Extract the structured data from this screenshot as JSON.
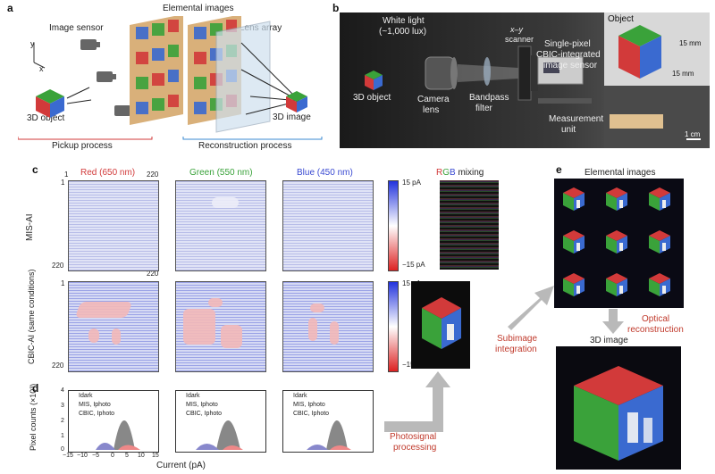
{
  "panels": {
    "a": {
      "label": "a",
      "elemental_images": "Elemental images",
      "image_sensor": "Image sensor",
      "lens_array": "Lens array",
      "object_3d": "3D object",
      "image_3d": "3D image",
      "pickup": "Pickup process",
      "reconstruction": "Reconstruction process",
      "axis_y": "y",
      "axis_x": "x"
    },
    "b": {
      "label": "b",
      "white_light": "White light",
      "white_light_lux": "(~1,000 lux)",
      "object_3d": "3D object",
      "camera_lens_1": "Camera",
      "camera_lens_2": "lens",
      "bandpass_1": "Bandpass",
      "bandpass_2": "filter",
      "scanner_1": "x–y",
      "scanner_2": "scanner",
      "sensor_1": "Single-pixel",
      "sensor_2": "CBIC-integrated",
      "sensor_3": "image sensor",
      "measurement_1": "Measurement",
      "measurement_2": "unit",
      "object_tag": "Object",
      "dim_1": "15 mm",
      "dim_2": "15 mm",
      "scale": "1 cm"
    },
    "c": {
      "label": "c",
      "red": "Red (650 nm)",
      "green": "Green (550 nm)",
      "blue": "Blue (450 nm)",
      "rgb_r": "R",
      "rgb_g": "G",
      "rgb_b": "B",
      "rgb_rest": " mixing",
      "row1": "MIS-AI",
      "row2": "CBIC-AI (same conditions)",
      "tick_1": "1",
      "tick_220": "220",
      "cb_top": "15 pA",
      "cb_bot": "−15 pA"
    },
    "d": {
      "label": "d",
      "ylabel": "Pixel counts (×10³)",
      "xlabel": "Current (pA)",
      "legend_dark": "Idark",
      "legend_mis": "MIS, Iphoto",
      "legend_cbic": "CBIC, Iphoto",
      "yticks": [
        "0",
        "1",
        "2",
        "3",
        "4"
      ],
      "xticks": [
        "−15",
        "−10",
        "−5",
        "0",
        "5",
        "10",
        "15"
      ]
    },
    "e": {
      "label": "e",
      "elemental": "Elemental images",
      "optical_1": "Optical",
      "optical_2": "reconstruction",
      "image_3d": "3D image"
    },
    "flow": {
      "subimage_1": "Subimage",
      "subimage_2": "integration",
      "photosignal_1": "Photosignal",
      "photosignal_2": "processing"
    }
  },
  "colors": {
    "red": "#d23a3a",
    "green": "#3aa23a",
    "blue": "#3a4ad2",
    "accent": "#c0392b"
  }
}
